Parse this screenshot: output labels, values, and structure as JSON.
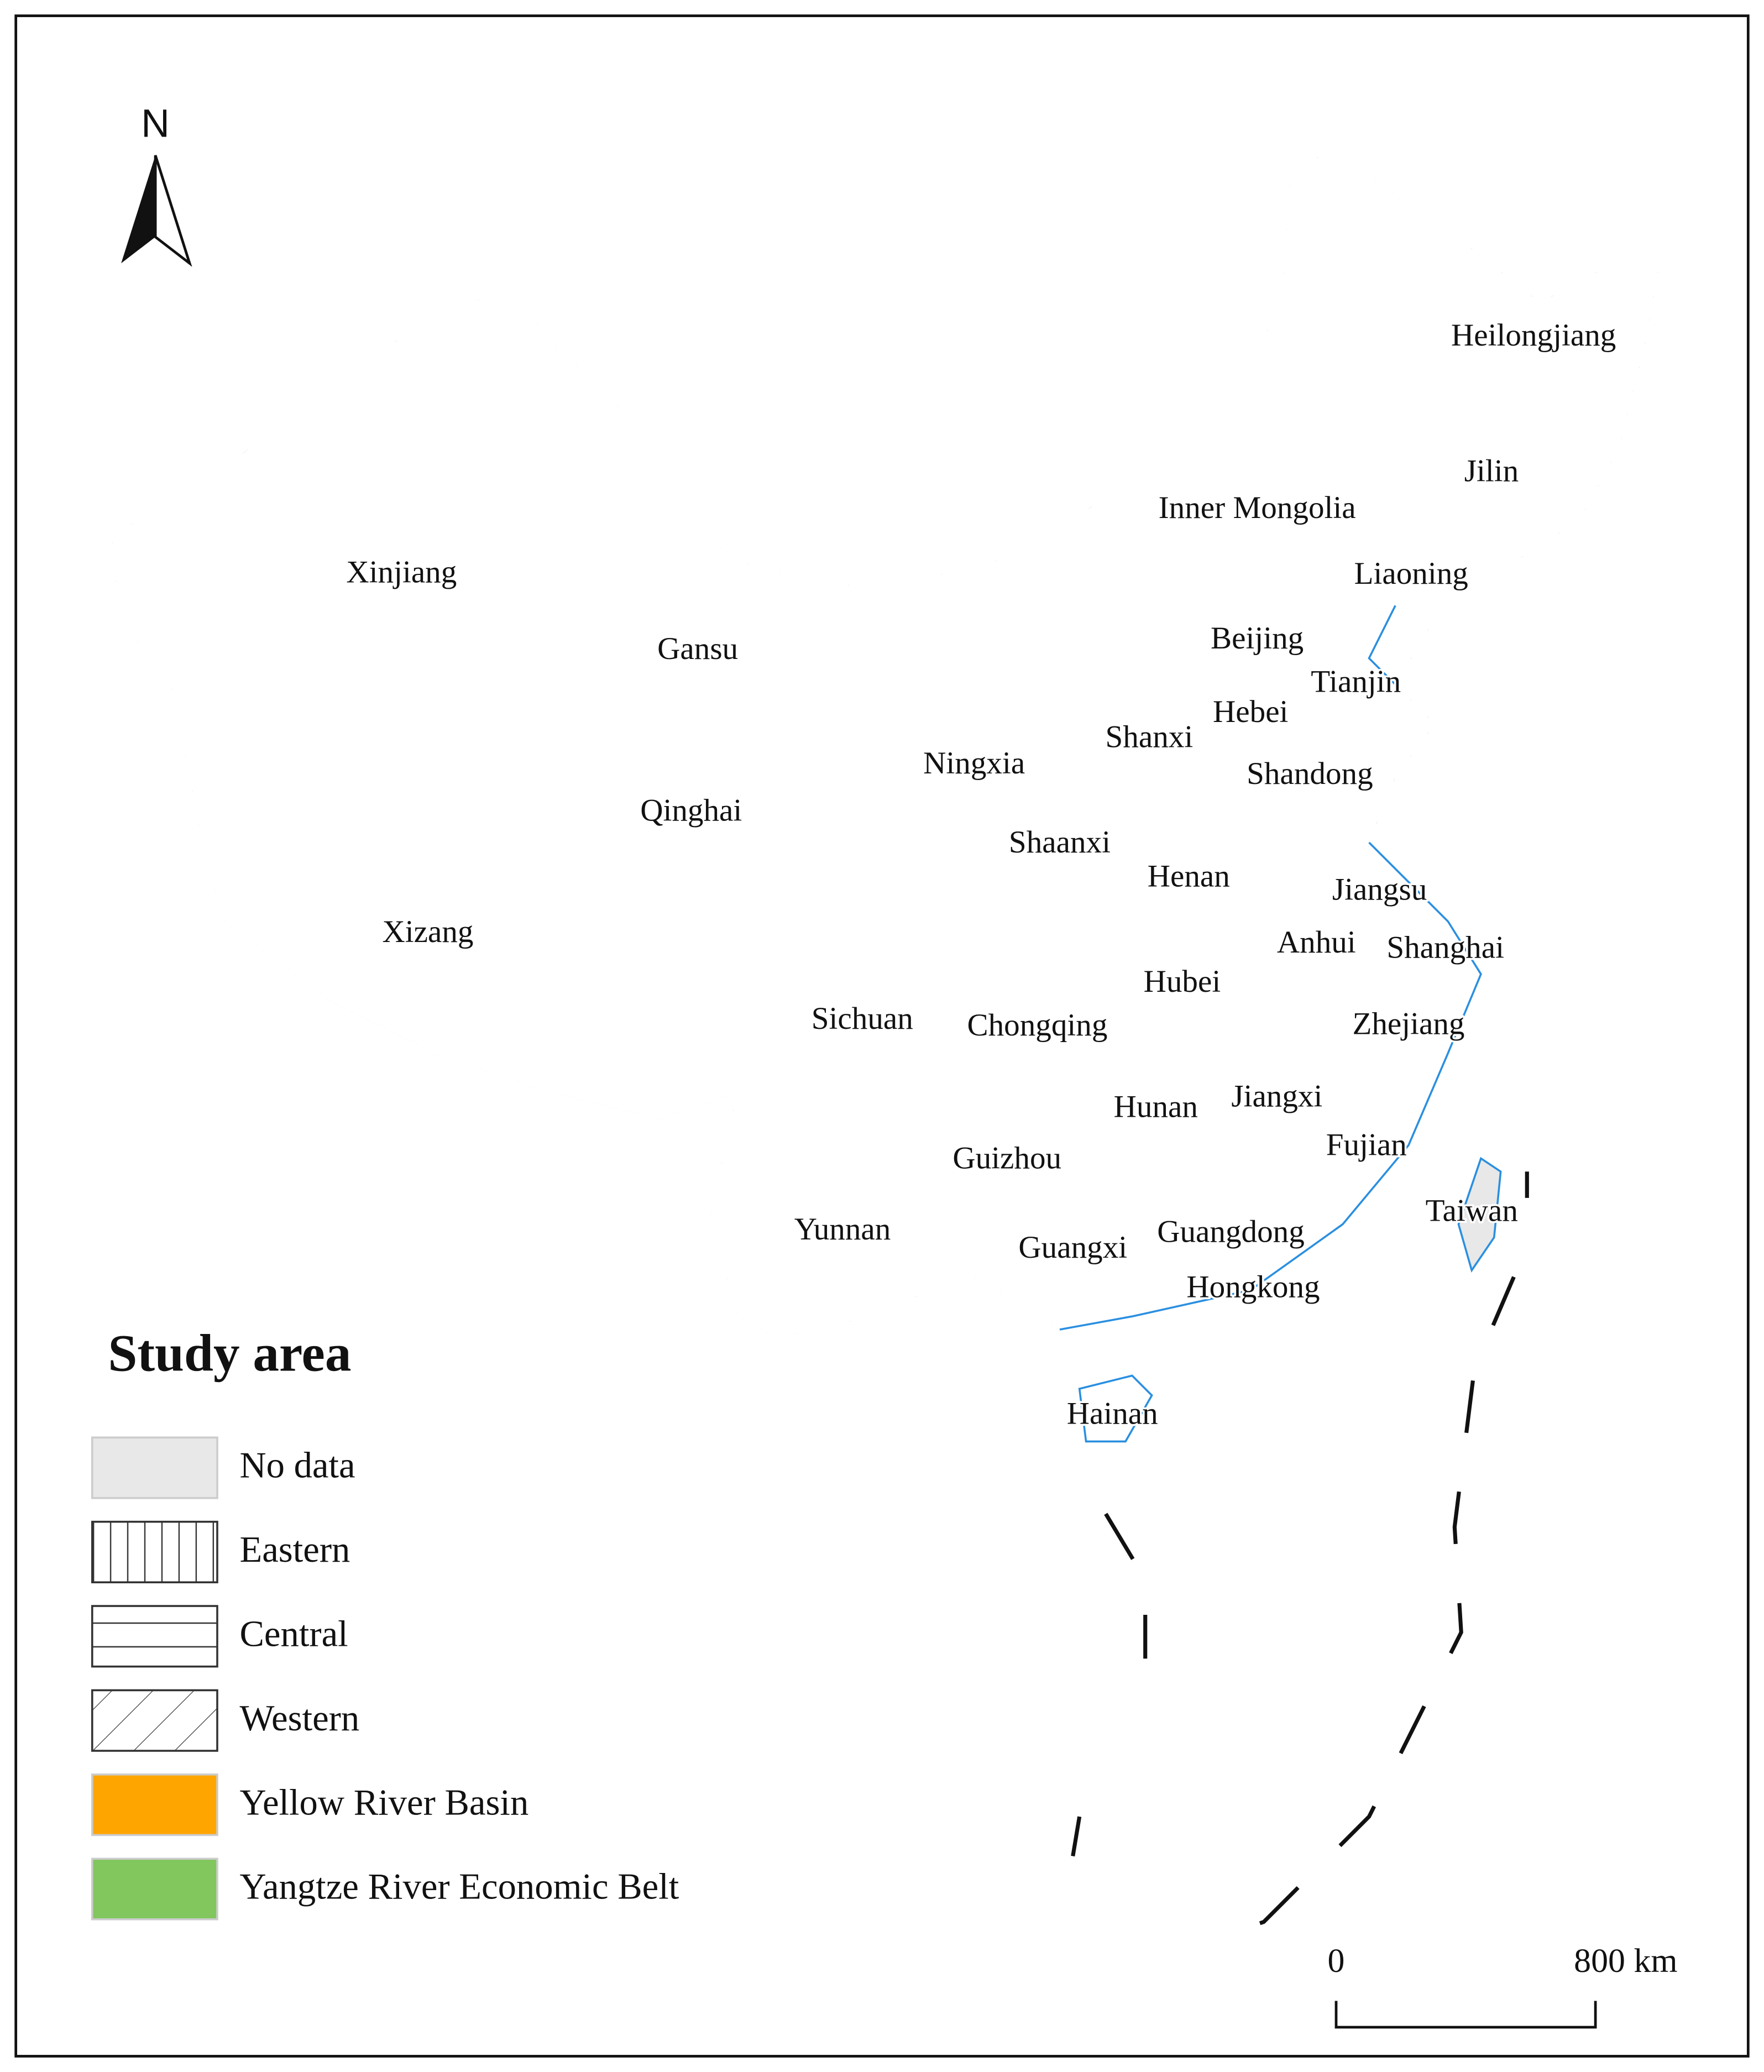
{
  "map": {
    "north": "N",
    "title": "Study area",
    "legend": [
      "No data",
      "Eastern",
      "Central",
      "Western",
      "Yellow River Basin",
      "Yangtze River Economic Belt"
    ],
    "provinces": [
      "Heilongjiang",
      "Jilin",
      "Inner Mongolia",
      "Liaoning",
      "Xinjiang",
      "Gansu",
      "Beijing",
      "Tianjin",
      "Hebei",
      "Shanxi",
      "Ningxia",
      "Shandong",
      "Qinghai",
      "Shaanxi",
      "Henan",
      "Jiangsu",
      "Xizang",
      "Anhui",
      "Shanghai",
      "Hubei",
      "Sichuan",
      "Chongqing",
      "Zhejiang",
      "Hunan",
      "Jiangxi",
      "Fujian",
      "Guizhou",
      "Taiwan",
      "Yunnan",
      "Guangxi",
      "Guangdong",
      "Hongkong",
      "Hainan"
    ],
    "scale_bar": {
      "start": "0",
      "end": "800 km"
    }
  }
}
